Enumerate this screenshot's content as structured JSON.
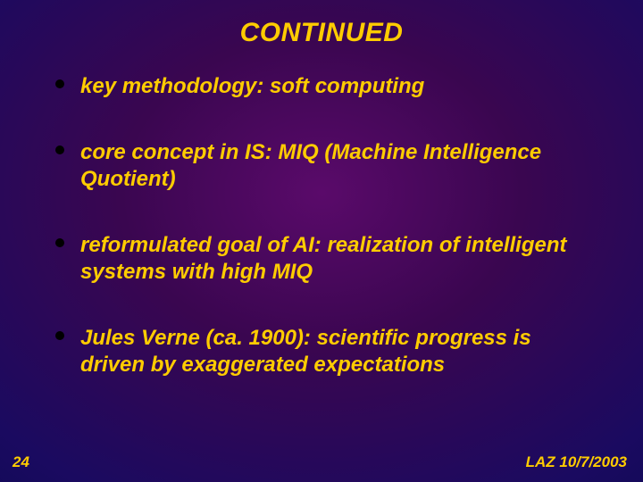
{
  "slide": {
    "title": "CONTINUED",
    "title_fontsize": 30,
    "bullets": [
      "key methodology: soft computing",
      "core concept in IS: MIQ (Machine Intelligence Quotient)",
      "reformulated goal of AI: realization of intelligent systems with high MIQ",
      "Jules Verne (ca. 1900): scientific progress is driven by exaggerated expectations"
    ],
    "bullet_fontsize": 24,
    "bullet_line_height": 1.25,
    "slide_number": "24",
    "footer": "LAZ  10/7/2003",
    "footer_fontsize": 17,
    "slidenum_fontsize": 17,
    "colors": {
      "text": "#ffcc00",
      "bullet_dot": "#000000",
      "bg_center": "#5a0a6a",
      "bg_mid": "#1a0a60",
      "bg_edge": "#040430"
    }
  }
}
